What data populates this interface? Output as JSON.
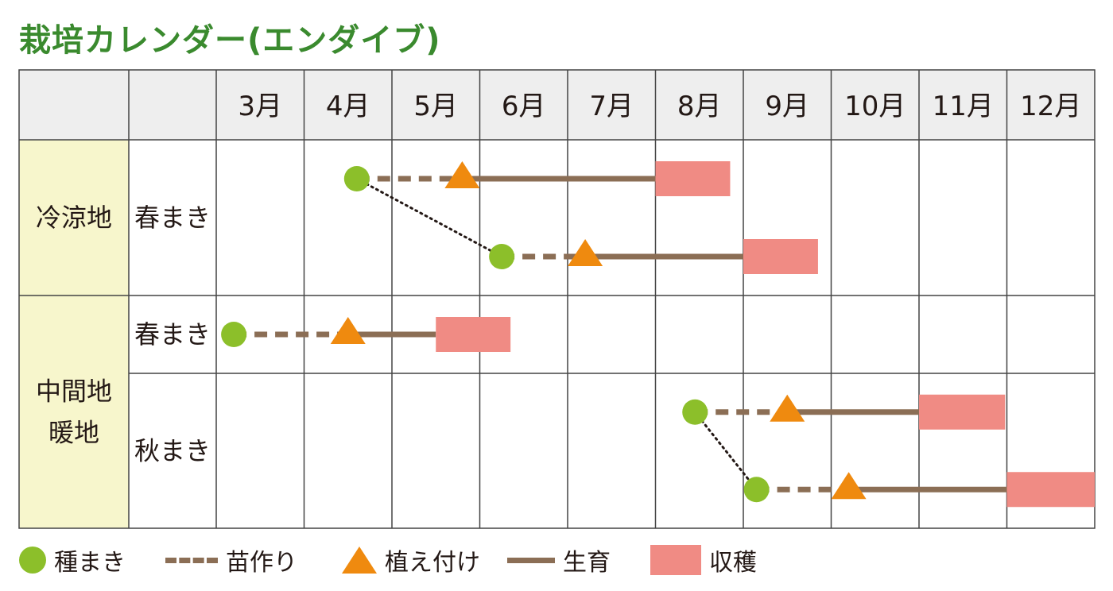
{
  "title": "栽培カレンダー(エンダイブ)",
  "chart_data": {
    "type": "table",
    "months": [
      "3月",
      "4月",
      "5月",
      "6月",
      "7月",
      "8月",
      "9月",
      "10月",
      "11月",
      "12月"
    ],
    "groups": [
      {
        "region": "冷涼地",
        "rows": [
          {
            "sowing_type": "春まき",
            "plans": [
              {
                "sow": 4.6,
                "plant": 5.8,
                "grow_end": 8.0,
                "harvest": [
                  8.0,
                  8.85
                ]
              },
              {
                "sow": 6.25,
                "plant": 7.2,
                "grow_end": 9.0,
                "harvest": [
                  9.0,
                  9.85
                ]
              }
            ]
          }
        ]
      },
      {
        "region": [
          "中間地",
          "暖地"
        ],
        "rows": [
          {
            "sowing_type": "春まき",
            "plans": [
              {
                "sow": 3.2,
                "plant": 4.5,
                "grow_end": 5.5,
                "harvest": [
                  5.5,
                  6.35
                ]
              }
            ]
          },
          {
            "sowing_type": "秋まき",
            "plans": [
              {
                "sow": 8.45,
                "plant": 9.5,
                "grow_end": 11.0,
                "harvest": [
                  11.0,
                  11.98
                ]
              },
              {
                "sow": 9.15,
                "plant": 10.2,
                "grow_end": 12.0,
                "harvest": [
                  12.0,
                  13.0
                ]
              }
            ]
          }
        ]
      }
    ],
    "legend": [
      {
        "key": "sow",
        "label": "種まき"
      },
      {
        "key": "nursery",
        "label": "苗作り"
      },
      {
        "key": "plant",
        "label": "植え付け"
      },
      {
        "key": "grow",
        "label": "生育"
      },
      {
        "key": "harvest",
        "label": "収穫"
      }
    ],
    "colors": {
      "sow": "#8cbf2a",
      "nursery": "#8b6e55",
      "plant": "#ef8a0f",
      "grow": "#8b6e55",
      "harvest": "#f08b84",
      "title": "#3a8a2e",
      "header_bg": "#eeeeee",
      "region_bg": "#f7f6cc",
      "grid": "#444444"
    }
  }
}
